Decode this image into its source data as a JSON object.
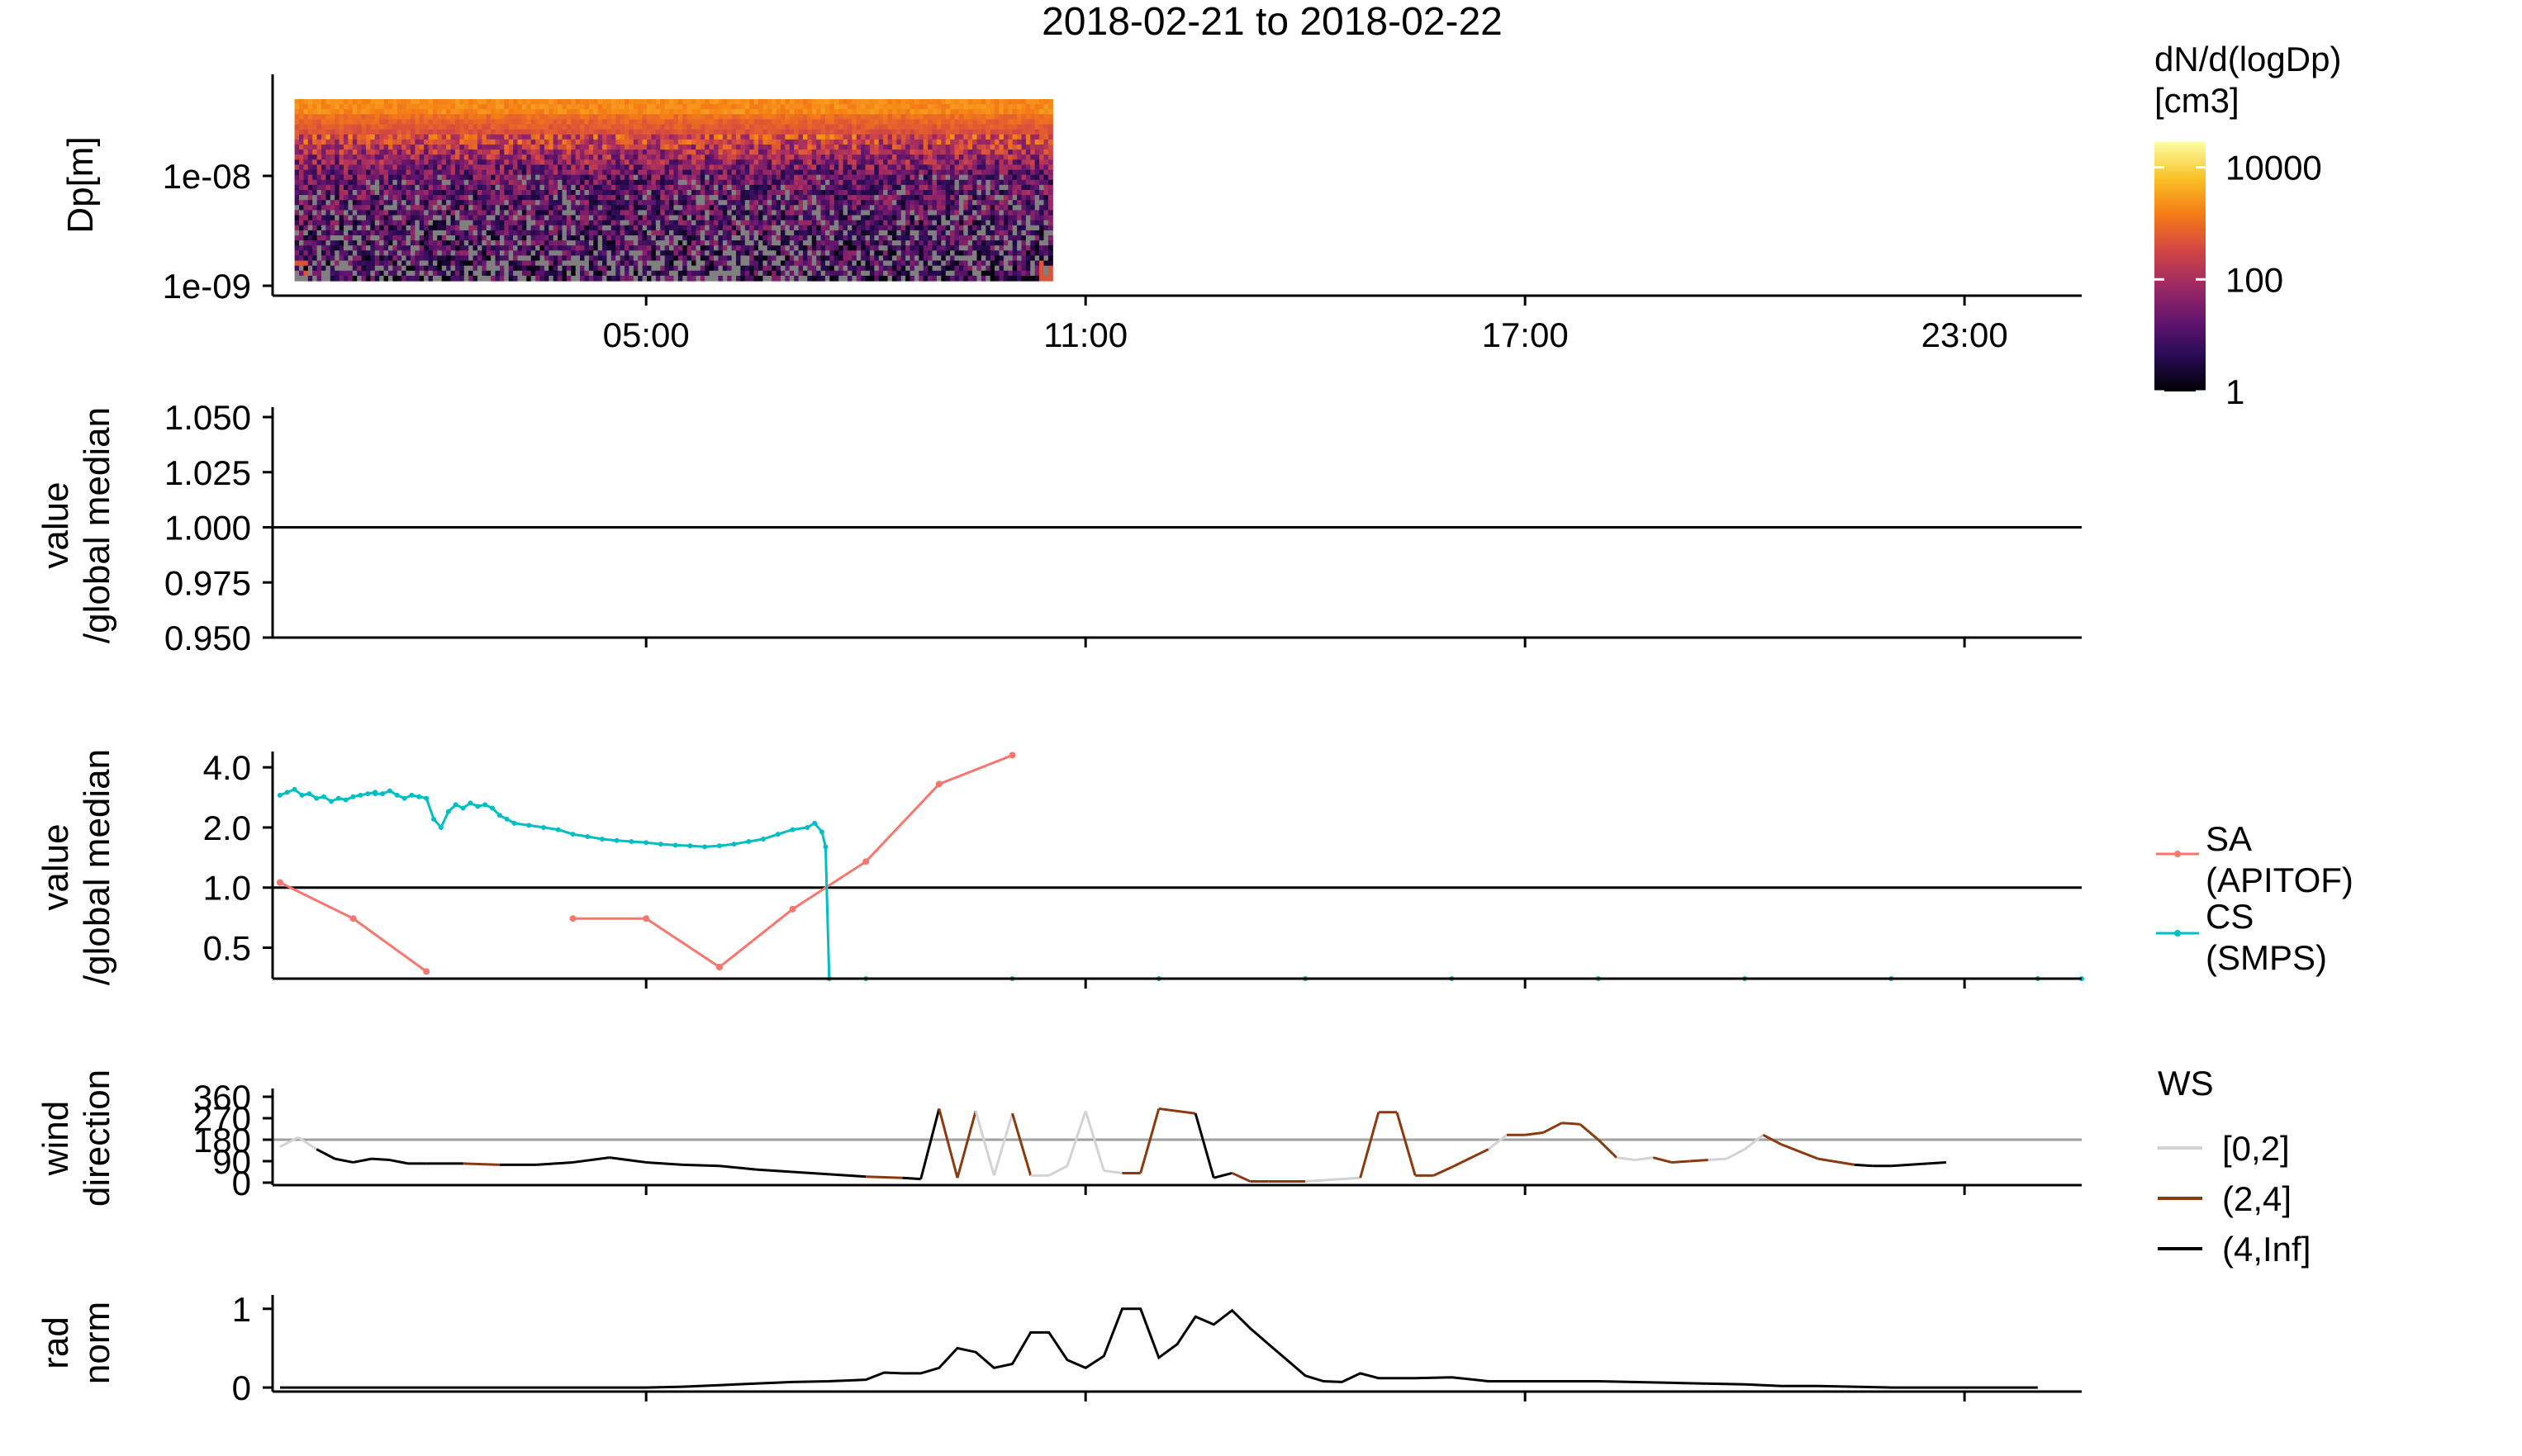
{
  "title": "2018-02-21  to  2018-02-22",
  "chart_data": [
    {
      "id": "size_distribution",
      "type": "heatmap",
      "ylabel": "Dp[m]",
      "yscale": "log",
      "ylim": [
        1e-09,
        5e-08
      ],
      "y_ticks": [
        "1e-08",
        "1e-09"
      ],
      "x_ticks": [
        "05:00",
        "11:00",
        "17:00",
        "23:00"
      ],
      "xlim_hours": [
        -0.1,
        24.6
      ],
      "data_extent_hours": [
        0.2,
        10.55
      ],
      "colorbar": {
        "title_line1": "dN/d(logDp)",
        "title_line2": "[cm3]",
        "scale": "log",
        "ticks": [
          "10000",
          "100",
          "1"
        ],
        "colors": [
          "#000004",
          "#280b54",
          "#65156e",
          "#9f2a63",
          "#d44842",
          "#f57d15",
          "#fac228",
          "#fcffa4"
        ]
      },
      "na_color": "#808080"
    },
    {
      "id": "empty_normalized",
      "type": "line",
      "ylabel_line1": "value",
      "ylabel_line2": "/global median",
      "ylim": [
        0.95,
        1.05
      ],
      "y_ticks": [
        "1.050",
        "1.025",
        "1.000",
        "0.975",
        "0.950"
      ],
      "reference_line": 1.0,
      "series": []
    },
    {
      "id": "sa_cs",
      "type": "line",
      "ylabel_line1": "value",
      "ylabel_line2": "/global median",
      "yscale": "log",
      "ylim": [
        0.35,
        4.8
      ],
      "y_ticks": [
        "4.0",
        "2.0",
        "1.0",
        "0.5"
      ],
      "reference_line": 1.0,
      "legend": {
        "entries": [
          {
            "line1": "SA",
            "line2": "(APITOF)",
            "color": "#F8766D"
          },
          {
            "line1": "CS",
            "line2": "(SMPS)",
            "color": "#00BFC4"
          }
        ]
      },
      "series": [
        {
          "name": "SA (APITOF)",
          "color": "#F8766D",
          "segments": [
            [
              [
                0.0,
                1.06
              ],
              [
                1.0,
                0.7
              ],
              [
                2.0,
                0.38
              ]
            ],
            [
              [
                4.0,
                0.7
              ],
              [
                5.0,
                0.7
              ],
              [
                6.0,
                0.4
              ]
            ],
            [
              [
                6.0,
                0.4
              ],
              [
                7.0,
                0.78
              ],
              [
                8.0,
                1.35
              ],
              [
                9.0,
                3.3
              ],
              [
                10.0,
                4.6
              ]
            ]
          ]
        },
        {
          "name": "CS (SMPS)",
          "color": "#00BFC4",
          "points": [
            [
              0.0,
              2.9
            ],
            [
              0.1,
              3.0
            ],
            [
              0.2,
              3.1
            ],
            [
              0.3,
              2.9
            ],
            [
              0.4,
              2.95
            ],
            [
              0.5,
              2.8
            ],
            [
              0.6,
              2.85
            ],
            [
              0.7,
              2.7
            ],
            [
              0.8,
              2.8
            ],
            [
              0.9,
              2.75
            ],
            [
              1.0,
              2.85
            ],
            [
              1.1,
              2.9
            ],
            [
              1.2,
              2.95
            ],
            [
              1.3,
              3.0
            ],
            [
              1.4,
              2.95
            ],
            [
              1.5,
              3.05
            ],
            [
              1.6,
              2.9
            ],
            [
              1.7,
              2.8
            ],
            [
              1.8,
              2.9
            ],
            [
              1.3,
              3.0
            ],
            [
              1.9,
              2.85
            ],
            [
              2.0,
              2.8
            ],
            [
              1.3,
              2.95
            ],
            [
              2.1,
              2.2
            ],
            [
              2.2,
              2.0
            ],
            [
              2.3,
              2.4
            ],
            [
              2.4,
              2.6
            ],
            [
              2.5,
              2.5
            ],
            [
              2.6,
              2.65
            ],
            [
              2.7,
              2.55
            ],
            [
              2.8,
              2.6
            ],
            [
              2.9,
              2.5
            ],
            [
              3.0,
              2.3
            ],
            [
              3.1,
              2.2
            ],
            [
              3.2,
              2.1
            ],
            [
              3.4,
              2.05
            ],
            [
              3.6,
              2.0
            ],
            [
              3.8,
              1.95
            ],
            [
              4.0,
              1.85
            ],
            [
              4.2,
              1.8
            ],
            [
              4.4,
              1.75
            ],
            [
              4.6,
              1.72
            ],
            [
              4.8,
              1.7
            ],
            [
              5.0,
              1.68
            ],
            [
              5.2,
              1.65
            ],
            [
              5.4,
              1.63
            ],
            [
              5.6,
              1.62
            ],
            [
              5.8,
              1.6
            ],
            [
              6.0,
              1.62
            ],
            [
              6.2,
              1.65
            ],
            [
              6.4,
              1.7
            ],
            [
              6.6,
              1.75
            ],
            [
              6.8,
              1.85
            ],
            [
              7.0,
              1.95
            ],
            [
              7.2,
              2.0
            ],
            [
              7.3,
              2.1
            ],
            [
              7.4,
              1.9
            ],
            [
              7.45,
              1.6
            ],
            [
              7.5,
              0.35
            ],
            [
              8.0,
              0.35
            ],
            [
              10.0,
              0.35
            ],
            [
              12.0,
              0.35
            ],
            [
              14.0,
              0.35
            ],
            [
              16.0,
              0.35
            ],
            [
              18.0,
              0.35
            ],
            [
              20.0,
              0.35
            ],
            [
              22.0,
              0.35
            ],
            [
              24.0,
              0.35
            ],
            [
              24.6,
              0.35
            ]
          ]
        }
      ]
    },
    {
      "id": "wind_direction",
      "type": "line",
      "ylabel_line1": "wind",
      "ylabel_line2": "direction",
      "ylim": [
        0,
        360
      ],
      "y_ticks": [
        "360",
        "270",
        "180",
        "90",
        "0"
      ],
      "reference_line": 180,
      "reference_color": "#A0A0A0",
      "legend": {
        "title": "WS",
        "entries": [
          {
            "label": "[0,2]",
            "color": "#D3D3D3"
          },
          {
            "label": "(2,4]",
            "color": "#8B3A0F"
          },
          {
            "label": "(4,Inf]",
            "color": "#000000"
          }
        ]
      },
      "points": [
        [
          0.0,
          150,
          "b"
        ],
        [
          0.25,
          190,
          "a"
        ],
        [
          0.5,
          140,
          "a"
        ],
        [
          0.75,
          100,
          "c"
        ],
        [
          1.0,
          85,
          "c"
        ],
        [
          1.25,
          100,
          "c"
        ],
        [
          1.5,
          95,
          "c"
        ],
        [
          1.75,
          80,
          "c"
        ],
        [
          2.0,
          80,
          "c"
        ],
        [
          2.5,
          80,
          "c"
        ],
        [
          3.0,
          75,
          "b"
        ],
        [
          3.5,
          75,
          "c"
        ],
        [
          4.0,
          85,
          "c"
        ],
        [
          4.5,
          105,
          "c"
        ],
        [
          5.0,
          85,
          "c"
        ],
        [
          5.5,
          75,
          "c"
        ],
        [
          6.0,
          70,
          "c"
        ],
        [
          6.5,
          55,
          "c"
        ],
        [
          7.0,
          45,
          "c"
        ],
        [
          7.5,
          35,
          "c"
        ],
        [
          8.0,
          25,
          "c"
        ],
        [
          8.5,
          20,
          "b"
        ],
        [
          8.75,
          15,
          "c"
        ],
        [
          9.0,
          310,
          "c"
        ],
        [
          9.25,
          20,
          "b"
        ],
        [
          9.5,
          300,
          "b"
        ],
        [
          9.75,
          30,
          "a"
        ],
        [
          10.0,
          290,
          "a"
        ],
        [
          10.25,
          30,
          "b"
        ],
        [
          10.5,
          30,
          "a"
        ],
        [
          10.75,
          70,
          "a"
        ],
        [
          11.0,
          300,
          "a"
        ],
        [
          11.25,
          50,
          "a"
        ],
        [
          11.5,
          40,
          "a"
        ],
        [
          11.75,
          40,
          "b"
        ],
        [
          12.0,
          310,
          "b"
        ],
        [
          12.5,
          290,
          "b"
        ],
        [
          12.75,
          20,
          "c"
        ],
        [
          13.0,
          40,
          "c"
        ],
        [
          13.25,
          5,
          "b"
        ],
        [
          13.5,
          5,
          "b"
        ],
        [
          14.0,
          5,
          "b"
        ],
        [
          14.5,
          15,
          "a"
        ],
        [
          14.75,
          20,
          "a"
        ],
        [
          15.0,
          295,
          "b"
        ],
        [
          15.25,
          295,
          "b"
        ],
        [
          15.5,
          30,
          "b"
        ],
        [
          15.75,
          30,
          "b"
        ],
        [
          16.0,
          65,
          "b"
        ],
        [
          16.5,
          140,
          "b"
        ],
        [
          16.75,
          200,
          "a"
        ],
        [
          17.0,
          200,
          "b"
        ],
        [
          17.25,
          210,
          "b"
        ],
        [
          17.5,
          250,
          "b"
        ],
        [
          17.75,
          245,
          "b"
        ],
        [
          18.0,
          180,
          "b"
        ],
        [
          18.25,
          105,
          "b"
        ],
        [
          18.5,
          95,
          "a"
        ],
        [
          18.75,
          105,
          "a"
        ],
        [
          19.0,
          85,
          "b"
        ],
        [
          19.25,
          90,
          "b"
        ],
        [
          19.5,
          95,
          "b"
        ],
        [
          19.75,
          100,
          "a"
        ],
        [
          20.0,
          140,
          "a"
        ],
        [
          20.25,
          200,
          "a"
        ],
        [
          20.5,
          160,
          "b"
        ],
        [
          21.0,
          100,
          "b"
        ],
        [
          21.5,
          75,
          "b"
        ],
        [
          21.75,
          70,
          "c"
        ],
        [
          22.0,
          70,
          "c"
        ],
        [
          22.5,
          80,
          "c"
        ],
        [
          22.75,
          85,
          "c"
        ]
      ]
    },
    {
      "id": "radiation",
      "type": "line",
      "ylabel_line1": "rad",
      "ylabel_line2": "norm",
      "ylim": [
        -0.02,
        1.05
      ],
      "y_ticks": [
        "1",
        "0"
      ],
      "series": [
        {
          "name": "rad norm",
          "color": "#000000",
          "points": [
            [
              0.0,
              0.0
            ],
            [
              1.0,
              0.0
            ],
            [
              2.0,
              0.0
            ],
            [
              3.0,
              0.0
            ],
            [
              4.0,
              0.0
            ],
            [
              5.0,
              0.0
            ],
            [
              5.5,
              0.01
            ],
            [
              6.0,
              0.03
            ],
            [
              6.5,
              0.05
            ],
            [
              7.0,
              0.07
            ],
            [
              7.5,
              0.08
            ],
            [
              8.0,
              0.1
            ],
            [
              8.25,
              0.19
            ],
            [
              8.5,
              0.18
            ],
            [
              8.75,
              0.18
            ],
            [
              9.0,
              0.25
            ],
            [
              9.25,
              0.5
            ],
            [
              9.5,
              0.45
            ],
            [
              9.75,
              0.25
            ],
            [
              10.0,
              0.3
            ],
            [
              10.25,
              0.7
            ],
            [
              10.5,
              0.7
            ],
            [
              10.75,
              0.35
            ],
            [
              11.0,
              0.25
            ],
            [
              11.25,
              0.4
            ],
            [
              11.5,
              1.0
            ],
            [
              11.75,
              1.0
            ],
            [
              12.0,
              0.38
            ],
            [
              12.25,
              0.55
            ],
            [
              12.5,
              0.9
            ],
            [
              12.75,
              0.8
            ],
            [
              13.0,
              0.98
            ],
            [
              13.25,
              0.75
            ],
            [
              13.5,
              0.55
            ],
            [
              13.75,
              0.35
            ],
            [
              14.0,
              0.15
            ],
            [
              14.25,
              0.08
            ],
            [
              14.5,
              0.07
            ],
            [
              14.75,
              0.18
            ],
            [
              15.0,
              0.12
            ],
            [
              15.5,
              0.12
            ],
            [
              16.0,
              0.13
            ],
            [
              16.5,
              0.08
            ],
            [
              17.0,
              0.08
            ],
            [
              18.0,
              0.08
            ],
            [
              19.0,
              0.06
            ],
            [
              20.0,
              0.04
            ],
            [
              20.5,
              0.02
            ],
            [
              21.0,
              0.02
            ],
            [
              22.0,
              0.0
            ],
            [
              23.0,
              0.0
            ],
            [
              24.0,
              0.0
            ]
          ]
        }
      ]
    }
  ]
}
